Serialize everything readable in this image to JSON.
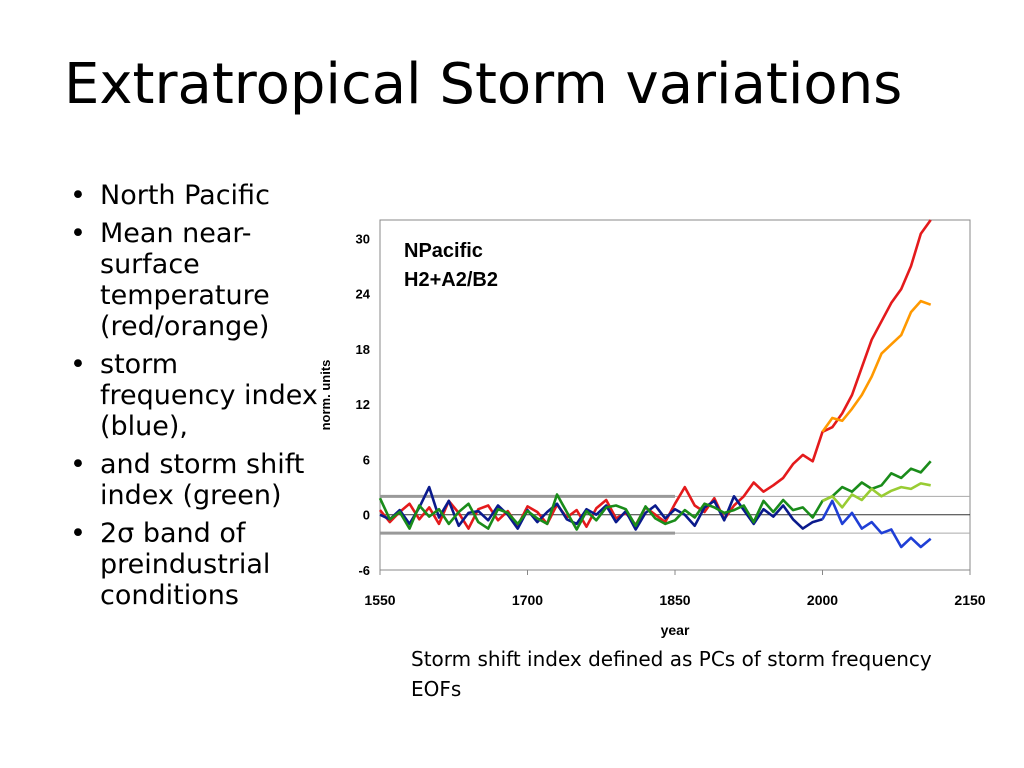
{
  "slide": {
    "title": "Extratropical Storm variations",
    "bullets": [
      {
        "marker": "•",
        "text": "North Pacific"
      },
      {
        "marker": "•",
        "text": "Mean near-surface temperature (red/orange)"
      },
      {
        "marker": "•",
        "text": "storm frequency index (blue),"
      },
      {
        "marker": "•",
        "text": " and storm shift index (green)"
      },
      {
        "marker": "•",
        "text": "2σ band of preindustrial conditions"
      }
    ],
    "caption": "Storm shift index defined as PCs of  storm frequency EOFs"
  },
  "chart_data": {
    "type": "line",
    "title": "NPacific\nH2+A2/B2",
    "xlabel": "year",
    "ylabel": "norm. units",
    "xlim": [
      1550,
      2150
    ],
    "ylim": [
      -6,
      32
    ],
    "xticks": [
      1550,
      1700,
      1850,
      2000,
      2150
    ],
    "yticks": [
      -6,
      0,
      6,
      12,
      18,
      24,
      30
    ],
    "grid": false,
    "band": {
      "upper": 2,
      "lower": -2,
      "x_start": 1550,
      "x_end": 1850
    },
    "band_extension": {
      "upper": 2,
      "lower": -2,
      "x_start": 1850,
      "x_end": 2150
    },
    "series": [
      {
        "color": "#e41a1c",
        "x": [
          1550,
          1560,
          1570,
          1580,
          1590,
          1600,
          1610,
          1620,
          1630,
          1640,
          1650,
          1660,
          1670,
          1680,
          1690,
          1700,
          1710,
          1720,
          1730,
          1740,
          1750,
          1760,
          1770,
          1780,
          1790,
          1800,
          1810,
          1820,
          1830,
          1840,
          1850,
          1860,
          1870,
          1880,
          1890,
          1900,
          1910,
          1920,
          1930,
          1940,
          1950,
          1960,
          1970,
          1980,
          1990,
          2000,
          2010,
          2020,
          2030,
          2040,
          2050,
          2060,
          2070,
          2080,
          2090,
          2100,
          2110
        ],
        "y": [
          0.5,
          -0.8,
          0.3,
          1.2,
          -0.5,
          0.8,
          -1.0,
          1.5,
          0.2,
          -1.5,
          0.6,
          1.0,
          -0.6,
          0.4,
          -1.2,
          0.9,
          0.3,
          -1.0,
          1.1,
          -0.3,
          0.5,
          -1.3,
          0.7,
          1.6,
          -0.4,
          0.2,
          -1.1,
          0.8,
          0.0,
          -0.8,
          1.2,
          3.0,
          1.0,
          0.3,
          1.8,
          -0.5,
          1.0,
          2.0,
          3.5,
          2.5,
          3.2,
          4.0,
          5.5,
          6.5,
          5.8,
          9.0,
          9.5,
          11.0,
          13.0,
          16.0,
          19.0,
          21.0,
          23.0,
          24.5,
          27.0,
          30.5,
          32.0
        ]
      },
      {
        "color": "#ff9900",
        "x": [
          2000,
          2010,
          2020,
          2030,
          2040,
          2050,
          2060,
          2070,
          2080,
          2090,
          2100,
          2110
        ],
        "y": [
          9.0,
          10.5,
          10.2,
          11.5,
          13.0,
          15.0,
          17.5,
          18.5,
          19.5,
          22.0,
          23.2,
          22.8
        ]
      },
      {
        "color": "#0a1a8c",
        "x": [
          1550,
          1560,
          1570,
          1580,
          1590,
          1600,
          1610,
          1620,
          1630,
          1640,
          1650,
          1660,
          1670,
          1680,
          1690,
          1700,
          1710,
          1720,
          1730,
          1740,
          1750,
          1760,
          1770,
          1780,
          1790,
          1800,
          1810,
          1820,
          1830,
          1840,
          1850,
          1860,
          1870,
          1880,
          1890,
          1900,
          1910,
          1920,
          1930,
          1940,
          1950,
          1960,
          1970,
          1980,
          1990,
          2000
        ],
        "y": [
          0.0,
          -0.5,
          0.5,
          -1.0,
          0.8,
          3.0,
          -0.3,
          1.5,
          -1.2,
          0.2,
          0.4,
          -0.6,
          1.0,
          0.0,
          -1.5,
          0.5,
          -0.8,
          0.3,
          1.2,
          -0.5,
          -1.0,
          0.6,
          0.0,
          1.0,
          -0.8,
          0.4,
          -1.6,
          0.2,
          1.0,
          -0.4,
          0.6,
          0.0,
          -1.2,
          0.8,
          1.5,
          -0.6,
          2.0,
          0.5,
          -1.0,
          0.6,
          -0.2,
          1.0,
          -0.5,
          -1.5,
          -0.8,
          -0.5
        ]
      },
      {
        "color": "#1f3fd6",
        "x": [
          2000,
          2010,
          2020,
          2030,
          2040,
          2050,
          2060,
          2070,
          2080,
          2090,
          2100,
          2110
        ],
        "y": [
          -0.5,
          1.5,
          -1.0,
          0.2,
          -1.5,
          -0.8,
          -2.0,
          -1.6,
          -3.5,
          -2.5,
          -3.5,
          -2.6
        ]
      },
      {
        "color": "#1a8c1a",
        "x": [
          1550,
          1560,
          1570,
          1580,
          1590,
          1600,
          1610,
          1620,
          1630,
          1640,
          1650,
          1660,
          1670,
          1680,
          1690,
          1700,
          1710,
          1720,
          1730,
          1740,
          1750,
          1760,
          1770,
          1780,
          1790,
          1800,
          1810,
          1820,
          1830,
          1840,
          1850,
          1860,
          1870,
          1880,
          1890,
          1900,
          1910,
          1920,
          1930,
          1940,
          1950,
          1960,
          1970,
          1980,
          1990,
          2000,
          2010,
          2020,
          2030,
          2040,
          2050,
          2060,
          2070,
          2080,
          2090,
          2100,
          2110
        ],
        "y": [
          1.8,
          -0.5,
          0.3,
          -1.5,
          1.0,
          -0.2,
          0.6,
          -1.0,
          0.3,
          1.2,
          -0.8,
          -1.5,
          0.6,
          0.2,
          -1.0,
          0.4,
          -0.4,
          -1.0,
          2.2,
          0.3,
          -1.6,
          0.4,
          -0.6,
          0.8,
          1.0,
          0.6,
          -1.2,
          0.9,
          -0.4,
          -1.0,
          -0.6,
          0.5,
          -0.3,
          1.2,
          0.8,
          0.2,
          0.5,
          1.0,
          -0.8,
          1.5,
          0.3,
          1.6,
          0.5,
          0.8,
          -0.3,
          1.5,
          2.0,
          3.0,
          2.5,
          3.5,
          2.8,
          3.2,
          4.5,
          4.0,
          5.0,
          4.6,
          5.8
        ]
      },
      {
        "color": "#99cc33",
        "x": [
          2000,
          2010,
          2020,
          2030,
          2040,
          2050,
          2060,
          2070,
          2080,
          2090,
          2100,
          2110
        ],
        "y": [
          1.5,
          2.0,
          0.8,
          2.2,
          1.6,
          2.8,
          2.0,
          2.6,
          3.0,
          2.8,
          3.4,
          3.2
        ]
      }
    ]
  }
}
